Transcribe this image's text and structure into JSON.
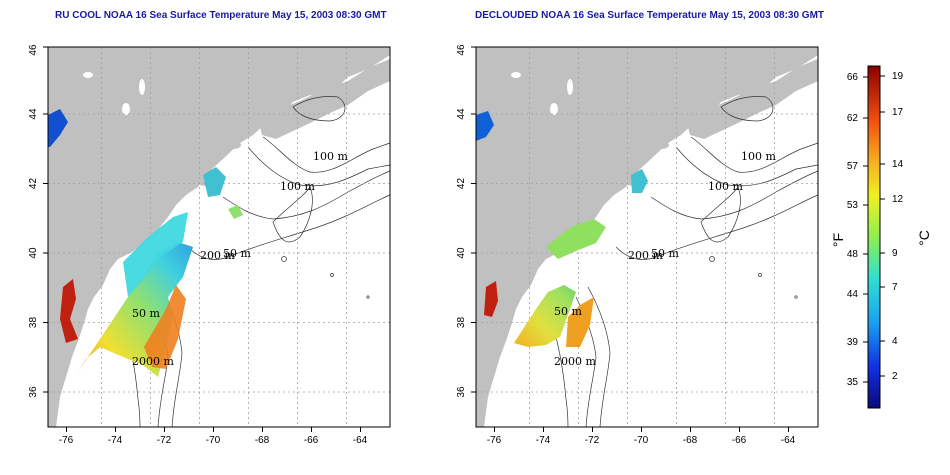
{
  "panels": [
    {
      "title": "RU COOL NOAA 16 Sea Surface Temperature May 15, 2003 08:30 GMT",
      "lon_ticks": [
        "-76",
        "-74",
        "-72",
        "-70",
        "-68",
        "-66",
        "-64"
      ],
      "lat_ticks": [
        "36",
        "38",
        "40",
        "42",
        "44",
        "46"
      ],
      "contour_labels": [
        "100 m",
        "100 m",
        "50 m",
        "200 m",
        "50 m",
        "2000 m"
      ]
    },
    {
      "title": "DECLOUDED NOAA 16 Sea Surface Temperature May 15, 2003 08:30 GMT",
      "lon_ticks": [
        "-76",
        "-74",
        "-72",
        "-70",
        "-68",
        "-66",
        "-64"
      ],
      "lat_ticks": [
        "36",
        "38",
        "40",
        "42",
        "44",
        "46"
      ],
      "contour_labels": [
        "100 m",
        "100 m",
        "50 m",
        "200 m",
        "50 m",
        "2000 m"
      ]
    }
  ],
  "colorbar": {
    "fahrenheit_ticks": [
      "66",
      "62",
      "57",
      "53",
      "48",
      "44",
      "39",
      "35"
    ],
    "celsius_ticks": [
      "19",
      "17",
      "14",
      "12",
      "9",
      "7",
      "4",
      "2"
    ],
    "unit_f": "°F",
    "unit_c": "°C"
  },
  "colors": {
    "land": "#c0c0c0",
    "ocean": "#ffffff",
    "grid": "#a0a0a0",
    "title": "#1a1aa0"
  }
}
